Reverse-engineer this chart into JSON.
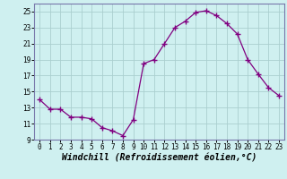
{
  "x": [
    0,
    1,
    2,
    3,
    4,
    5,
    6,
    7,
    8,
    9,
    10,
    11,
    12,
    13,
    14,
    15,
    16,
    17,
    18,
    19,
    20,
    21,
    22,
    23
  ],
  "y": [
    14.0,
    12.8,
    12.8,
    11.8,
    11.8,
    11.6,
    10.5,
    10.1,
    9.5,
    11.5,
    18.5,
    19.0,
    21.0,
    23.0,
    23.8,
    24.9,
    25.1,
    24.5,
    23.5,
    22.2,
    19.0,
    17.2,
    15.5,
    14.5
  ],
  "line_color": "#800080",
  "marker": "+",
  "marker_size": 4,
  "bg_color": "#cff0f0",
  "grid_color": "#aacfcf",
  "xlabel": "Windchill (Refroidissement éolien,°C)",
  "ylim": [
    9,
    26
  ],
  "xlim": [
    -0.5,
    23.5
  ],
  "yticks": [
    9,
    11,
    13,
    15,
    17,
    19,
    21,
    23,
    25
  ],
  "xticks": [
    0,
    1,
    2,
    3,
    4,
    5,
    6,
    7,
    8,
    9,
    10,
    11,
    12,
    13,
    14,
    15,
    16,
    17,
    18,
    19,
    20,
    21,
    22,
    23
  ],
  "tick_fontsize": 5.5,
  "xlabel_fontsize": 7.0,
  "spine_color": "#7777aa"
}
